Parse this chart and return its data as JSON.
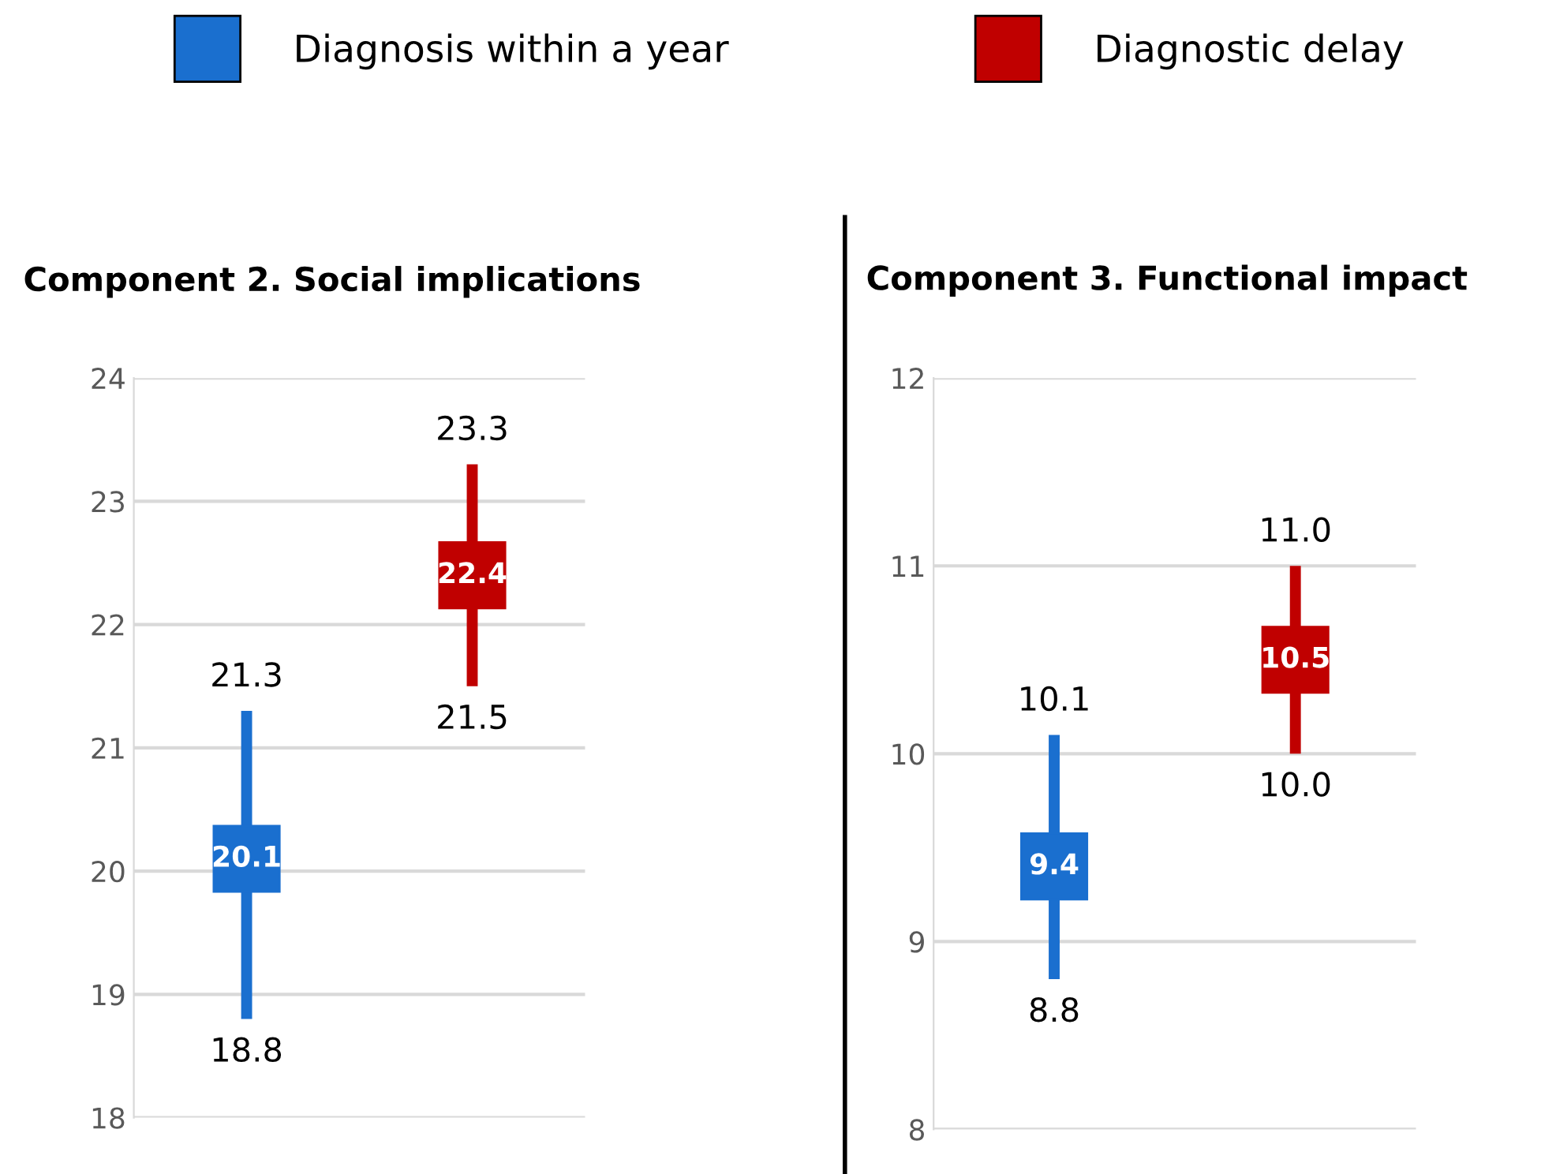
{
  "chart_data": [
    {
      "type": "scatter",
      "title": "Component 2. Social implications",
      "categories": [
        null,
        null
      ],
      "ylim": [
        18,
        24
      ],
      "yticks": [
        18,
        19,
        20,
        21,
        22,
        23,
        24
      ],
      "grid": "y",
      "legend": "top",
      "marker": "square",
      "data_labels": true,
      "series": [
        {
          "name": "Diagnosis within a year",
          "color": "#1a6fcf",
          "values": [
            20.1,
            null
          ],
          "errors": [
            [
              18.8,
              21.3
            ],
            null
          ]
        },
        {
          "name": "Diagnostic delay",
          "color": "#c00000",
          "values": [
            null,
            22.4
          ],
          "errors": [
            null,
            [
              21.5,
              23.3
            ]
          ]
        }
      ],
      "annotations": [
        "21.3",
        "18.8",
        "23.3",
        "21.5"
      ]
    },
    {
      "type": "scatter",
      "title": "Component 3. Functional impact",
      "categories": [
        null,
        null
      ],
      "ylim": [
        8,
        12
      ],
      "yticks": [
        8,
        9,
        10,
        11,
        12
      ],
      "grid": "y",
      "marker": "square",
      "data_labels": true,
      "series": [
        {
          "color": "#1a6fcf",
          "values": [
            9.4,
            null
          ],
          "errors": [
            [
              8.8,
              10.1
            ],
            null
          ]
        },
        {
          "color": "#c00000",
          "values": [
            null,
            10.5
          ],
          "errors": [
            null,
            [
              10.0,
              11.0
            ]
          ]
        }
      ],
      "annotations": [
        "10.1",
        "8.8",
        "11.0",
        "10.0"
      ]
    }
  ]
}
